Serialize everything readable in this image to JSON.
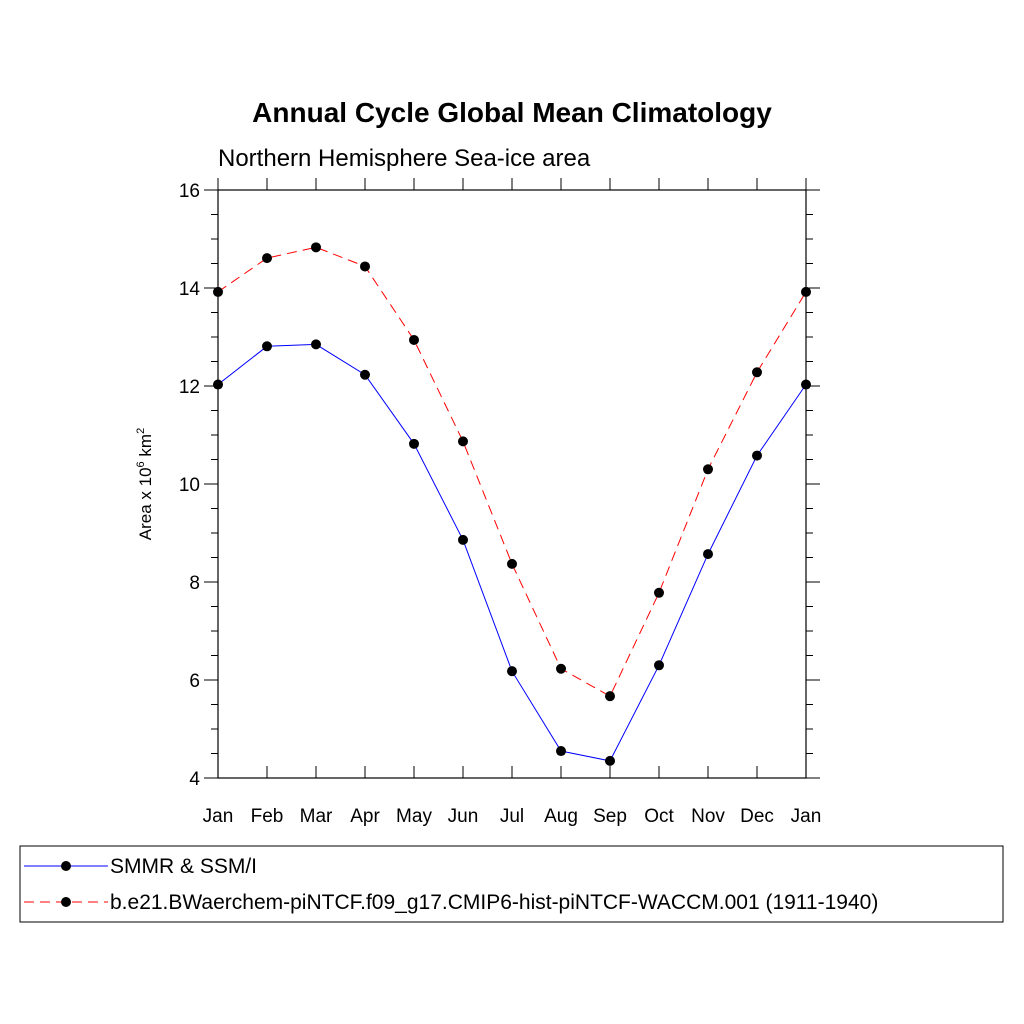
{
  "chart_data": {
    "type": "line",
    "title": "Annual Cycle Global Mean Climatology",
    "subtitle": "Northern Hemisphere Sea-ice area",
    "ylabel": "Area x 10",
    "ylabel_sup1": "6",
    "ylabel_unit": " km",
    "ylabel_sup2": "2",
    "xlabel": "",
    "categories": [
      "Jan",
      "Feb",
      "Mar",
      "Apr",
      "May",
      "Jun",
      "Jul",
      "Aug",
      "Sep",
      "Oct",
      "Nov",
      "Dec",
      "Jan"
    ],
    "ylim": [
      4,
      16
    ],
    "yticks": [
      4,
      6,
      8,
      10,
      12,
      14,
      16
    ],
    "yminor_step": 0.5,
    "grid": false,
    "legend_position": "bottom",
    "series": [
      {
        "name": "SMMR & SSM/I",
        "color": "#0000ff",
        "dash": "solid",
        "values": [
          12.03,
          12.81,
          12.85,
          12.23,
          10.82,
          8.86,
          6.18,
          4.55,
          4.35,
          6.3,
          8.57,
          10.58,
          12.03
        ]
      },
      {
        "name": "b.e21.BWaerchem-piNTCF.f09_g17.CMIP6-hist-piNTCF-WACCM.001 (1911-1940)",
        "color": "#ff0000",
        "dash": "dashed",
        "values": [
          13.92,
          14.61,
          14.83,
          14.44,
          12.94,
          10.87,
          8.37,
          6.23,
          5.67,
          7.78,
          10.3,
          12.28,
          13.92
        ]
      }
    ]
  }
}
